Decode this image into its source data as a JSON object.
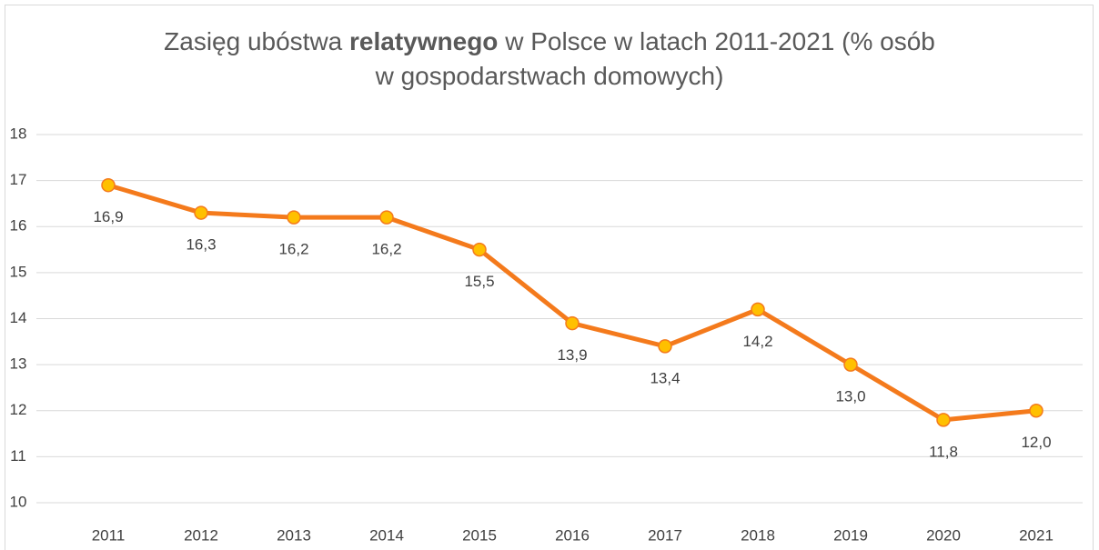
{
  "chart_data": {
    "type": "line",
    "title": [
      [
        {
          "text": "Zasięg ubóstwa "
        },
        {
          "text": "relatywnego",
          "bold": true
        },
        {
          "text": " w Polsce w latach 2011-2021 (% osób"
        }
      ],
      [
        {
          "text": "w gospodarstwach domowych)"
        }
      ]
    ],
    "categories": [
      "2011",
      "2012",
      "2013",
      "2014",
      "2015",
      "2016",
      "2017",
      "2018",
      "2019",
      "2020",
      "2021"
    ],
    "series": [
      {
        "color": "#f47a1c",
        "marker_color": "#ffc000",
        "values": [
          16.9,
          16.3,
          16.2,
          16.2,
          15.5,
          13.9,
          13.4,
          14.2,
          13.0,
          11.8,
          12.0
        ],
        "value_labels": [
          "16,9",
          "16,3",
          "16,2",
          "16,2",
          "15,5",
          "13,9",
          "13,4",
          "14,2",
          "13,0",
          "11,8",
          "12,0"
        ]
      }
    ],
    "ylim": [
      10,
      18
    ],
    "yticks": [
      10,
      11,
      12,
      13,
      14,
      15,
      16,
      17,
      18
    ],
    "grid": true
  }
}
